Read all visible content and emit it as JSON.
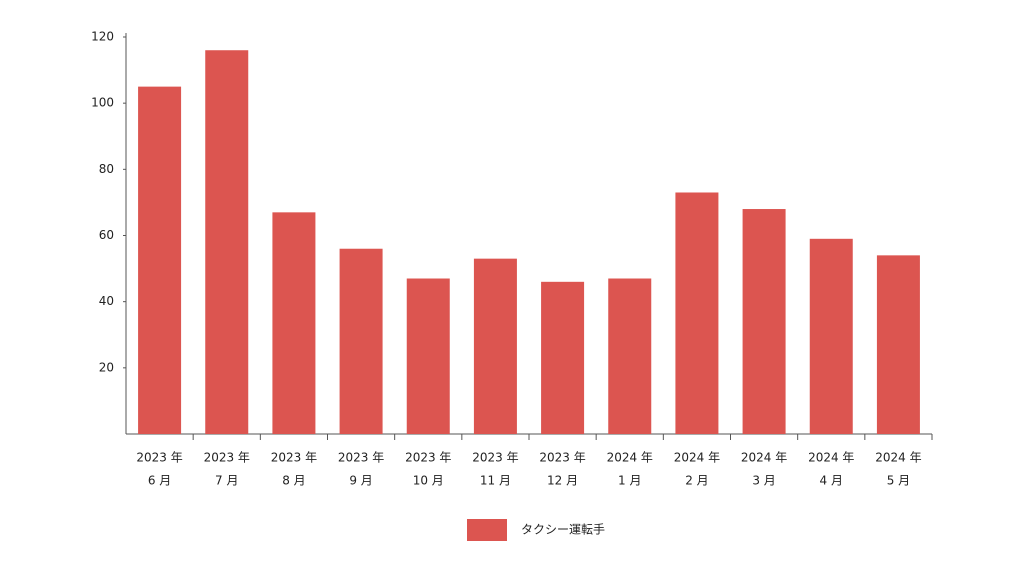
{
  "chart_data": {
    "type": "bar",
    "categories": [
      [
        "2023 年",
        "6 月"
      ],
      [
        "2023 年",
        "7 月"
      ],
      [
        "2023 年",
        "8 月"
      ],
      [
        "2023 年",
        "9 月"
      ],
      [
        "2023 年",
        "10 月"
      ],
      [
        "2023 年",
        "11 月"
      ],
      [
        "2023 年",
        "12 月"
      ],
      [
        "2024 年",
        "1 月"
      ],
      [
        "2024 年",
        "2 月"
      ],
      [
        "2024 年",
        "3 月"
      ],
      [
        "2024 年",
        "4 月"
      ],
      [
        "2024 年",
        "5 月"
      ]
    ],
    "series": [
      {
        "name": "タクシー運転手",
        "color": "#dc5550",
        "values": [
          105,
          116,
          67,
          56,
          47,
          53,
          46,
          47,
          73,
          68,
          59,
          54
        ]
      }
    ],
    "ylim": [
      0,
      120
    ],
    "yticks": [
      20,
      40,
      60,
      80,
      100,
      120
    ],
    "legend": "bottom"
  }
}
